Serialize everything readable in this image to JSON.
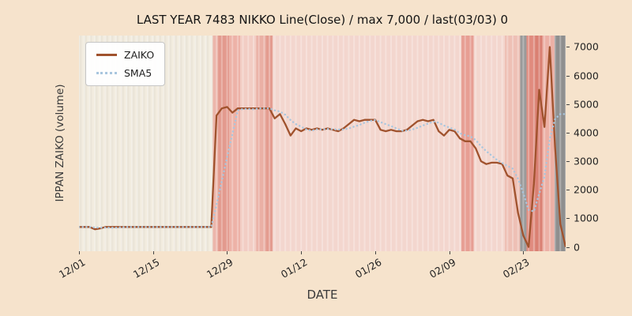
{
  "figure": {
    "title": "LAST YEAR 7483 NIKKO Line(Close) / max 7,000 / last(03/03) 0",
    "xlabel": "DATE",
    "ylabel": "IPPAN ZAIKO (volume)"
  },
  "colors": {
    "figure_bg": "#f6e3cc",
    "plot_bg_light": "#f2ecdf",
    "plot_bg_dark": "#ebe5d8",
    "stripe_overlay": "rgba(255,255,255,0.28)"
  },
  "legend": {
    "items": [
      {
        "label": "ZAIKO",
        "color": "#a0522d",
        "style": "solid"
      },
      {
        "label": "SMA5",
        "color": "#a9c6de",
        "style": "dotted"
      }
    ]
  },
  "chart_data": {
    "type": "line",
    "title": "LAST YEAR 7483 NIKKO Line(Close) / max 7,000 / last(03/03) 0",
    "xlabel": "DATE",
    "ylabel": "IPPAN ZAIKO (volume)",
    "x_unit": "calendar day index from 12/01 (day 0) to 03/03 (day 92)",
    "xlim_days": [
      0,
      92
    ],
    "ylim": [
      -150,
      7400
    ],
    "grid": false,
    "legend_position": "upper-left",
    "y_ticks": [
      0,
      1000,
      2000,
      3000,
      4000,
      5000,
      6000,
      7000
    ],
    "x_ticks": [
      {
        "label": "12/01",
        "day": 0
      },
      {
        "label": "12/15",
        "day": 14
      },
      {
        "label": "12/29",
        "day": 28
      },
      {
        "label": "01/12",
        "day": 42
      },
      {
        "label": "01/26",
        "day": 56
      },
      {
        "label": "02/09",
        "day": 70
      },
      {
        "label": "02/23",
        "day": 84
      }
    ],
    "series": [
      {
        "name": "ZAIKO",
        "color": "#a0522d",
        "style": "solid",
        "values": [
          700,
          700,
          700,
          620,
          650,
          700,
          700,
          700,
          700,
          700,
          700,
          700,
          700,
          700,
          700,
          700,
          700,
          700,
          700,
          700,
          700,
          700,
          700,
          700,
          700,
          700,
          4600,
          4850,
          4900,
          4700,
          4850,
          4850,
          4850,
          4850,
          4850,
          4850,
          4850,
          4500,
          4650,
          4300,
          3900,
          4150,
          4050,
          4150,
          4100,
          4150,
          4100,
          4150,
          4100,
          4050,
          4150,
          4300,
          4450,
          4400,
          4450,
          4450,
          4450,
          4100,
          4050,
          4100,
          4050,
          4050,
          4100,
          4250,
          4400,
          4450,
          4400,
          4450,
          4050,
          3900,
          4100,
          4050,
          3800,
          3700,
          3700,
          3450,
          3000,
          2900,
          2950,
          2950,
          2900,
          2500,
          2400,
          1200,
          400,
          0,
          2200,
          5500,
          4200,
          7000,
          3500,
          800,
          0
        ]
      },
      {
        "name": "SMA5",
        "color": "#a9c6de",
        "style": "dotted",
        "values": [
          700,
          700,
          700,
          680,
          674,
          674,
          674,
          674,
          690,
          700,
          700,
          700,
          700,
          700,
          700,
          700,
          700,
          700,
          700,
          700,
          700,
          700,
          700,
          700,
          700,
          700,
          1480,
          2310,
          3150,
          3950,
          4780,
          4830,
          4830,
          4820,
          4850,
          4850,
          4850,
          4780,
          4740,
          4630,
          4440,
          4300,
          4210,
          4110,
          4070,
          4120,
          4110,
          4130,
          4120,
          4110,
          4110,
          4150,
          4210,
          4270,
          4350,
          4410,
          4440,
          4370,
          4300,
          4230,
          4150,
          4070,
          4070,
          4110,
          4170,
          4250,
          4320,
          4390,
          4350,
          4250,
          4180,
          4110,
          3980,
          3910,
          3870,
          3740,
          3530,
          3350,
          3200,
          3050,
          2940,
          2840,
          2740,
          2390,
          1880,
          1300,
          1240,
          1860,
          2460,
          3780,
          4480,
          4650,
          4650
        ]
      }
    ],
    "background_bands": [
      {
        "from": 25.3,
        "to": 26.3,
        "color": "#ecb6ab"
      },
      {
        "from": 26.3,
        "to": 28.4,
        "color": "#e39a8e"
      },
      {
        "from": 28.4,
        "to": 30.5,
        "color": "#edb2a7"
      },
      {
        "from": 30.5,
        "to": 33.5,
        "color": "#f2cdc4"
      },
      {
        "from": 33.5,
        "to": 35.3,
        "color": "#eab0a5"
      },
      {
        "from": 35.3,
        "to": 36.6,
        "color": "#e49c90"
      },
      {
        "from": 36.6,
        "to": 72.3,
        "color": "#f3d6ce"
      },
      {
        "from": 72.3,
        "to": 74.6,
        "color": "#e79e93"
      },
      {
        "from": 74.6,
        "to": 80.5,
        "color": "#f3d6ce"
      },
      {
        "from": 80.5,
        "to": 83.4,
        "color": "#eec0b5"
      },
      {
        "from": 83.4,
        "to": 84.6,
        "color": "#9a9a9a"
      },
      {
        "from": 84.6,
        "to": 86.2,
        "color": "#e08b7e"
      },
      {
        "from": 86.2,
        "to": 87.6,
        "color": "#da8073"
      },
      {
        "from": 87.6,
        "to": 89.9,
        "color": "#ecb0a5"
      },
      {
        "from": 89.9,
        "to": 92.6,
        "color": "#8f8f8f"
      }
    ]
  }
}
